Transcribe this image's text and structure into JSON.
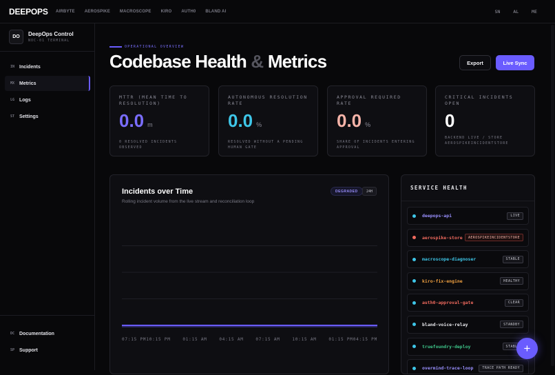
{
  "topbar": {
    "logo": "DEEPOPS",
    "nav": [
      "AIRBYTE",
      "AEROSPIKE",
      "MACROSCOPE",
      "KIRO",
      "AUTH0",
      "BLAND AI"
    ],
    "langs": [
      "SN",
      "AL",
      "ME"
    ]
  },
  "sidebar": {
    "badge": "DO",
    "title": "DeepOps Control",
    "subtitle": "NOC-01 TERMINAL",
    "items": [
      {
        "code": "IN",
        "label": "Incidents"
      },
      {
        "code": "MX",
        "label": "Metrics"
      },
      {
        "code": "LG",
        "label": "Logs"
      },
      {
        "code": "ST",
        "label": "Settings"
      }
    ],
    "bottom": [
      {
        "code": "DC",
        "label": "Documentation"
      },
      {
        "code": "SP",
        "label": "Support"
      }
    ]
  },
  "header": {
    "eyebrow": "OPERATIONAL OVERVIEW",
    "title_a": "Codebase Health",
    "title_amp": "&",
    "title_b": "Metrics",
    "export_label": "Export",
    "sync_label": "Live Sync"
  },
  "cards": [
    {
      "label": "MTTR (MEAN TIME TO RESOLUTION)",
      "value": "0.0",
      "unit": "m",
      "desc": "0 RESOLVED INCIDENTS OBSERVED",
      "color": "#7a6dff"
    },
    {
      "label": "AUTONOMOUS RESOLUTION RATE",
      "value": "0.0",
      "unit": "%",
      "desc": "RESOLVED WITHOUT A PENDING HUMAN GATE",
      "color": "#3ec6e8"
    },
    {
      "label": "APPROVAL REQUIRED RATE",
      "value": "0.0",
      "unit": "%",
      "desc": "SHARE OF INCIDENTS ENTERING APPROVAL",
      "color": "#f5b3a8"
    },
    {
      "label": "CRITICAL INCIDENTS OPEN",
      "value": "0",
      "unit": "",
      "desc": "BACKEND LIVE / STORE AEROSPIKEINCIDENTSTORE",
      "color": "#ffffff"
    }
  ],
  "chart": {
    "title": "Incidents over Time",
    "subtitle": "Rolling incident volume from the live stream and reconciliation loop",
    "badge": "DEGRADED",
    "range": "24H"
  },
  "chart_data": {
    "type": "line",
    "title": "Incidents over Time",
    "x": [
      "07:15 PM",
      "10:15 PM",
      "01:15 AM",
      "04:15 AM",
      "07:15 AM",
      "10:15 AM",
      "01:15 PM",
      "04:15 PM"
    ],
    "series": [
      {
        "values": [
          0,
          0,
          0,
          0,
          0,
          0,
          0,
          0
        ],
        "color": "#6a5cff"
      }
    ],
    "ylim": [
      0,
      4
    ],
    "grid": true,
    "xlabel": "",
    "ylabel": ""
  },
  "health": {
    "title": "SERVICE HEALTH",
    "items": [
      {
        "name": "deepops-api",
        "status": "LIVE",
        "name_color": "#9a90ff",
        "dot": "#3ec6e8"
      },
      {
        "name": "aerospike-store",
        "status": "AEROSPIKEINCIDENTSTORE",
        "name_color": "#f06a5e",
        "dot": "#f06a5e",
        "status_color": "#f5b3a8"
      },
      {
        "name": "macroscope-diagnoser",
        "status": "STABLE",
        "name_color": "#3ec6e8",
        "dot": "#3ec6e8"
      },
      {
        "name": "kiro-fix-engine",
        "status": "HEALTHY",
        "name_color": "#f0a040",
        "dot": "#3ec6e8"
      },
      {
        "name": "auth0-approval-gate",
        "status": "CLEAR",
        "name_color": "#f06a5e",
        "dot": "#3ec6e8"
      },
      {
        "name": "bland-voice-relay",
        "status": "STANDBY",
        "name_color": "#e8e8ec",
        "dot": "#3ec6e8"
      },
      {
        "name": "truefoundry-deploy",
        "status": "STABLE",
        "name_color": "#3ec68a",
        "dot": "#3ec6e8"
      },
      {
        "name": "overmind-trace-loop",
        "status": "TRACE PATH READY",
        "name_color": "#9a90ff",
        "dot": "#3ec6e8"
      }
    ]
  },
  "fab": {
    "label": "+"
  }
}
